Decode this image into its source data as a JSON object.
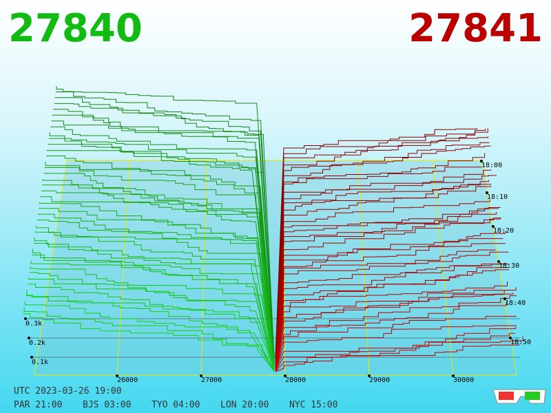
{
  "header": {
    "bid": "27840",
    "ask": "27841"
  },
  "price_axis": {
    "labels": [
      "26000",
      "27000",
      "28000",
      "29000",
      "30000"
    ]
  },
  "depth_axis": {
    "labels": [
      "0.3k",
      "0.2k",
      "0.1k"
    ]
  },
  "time_axis": {
    "labels": [
      "18:00",
      "18:10",
      "18:20",
      "18:30",
      "18:40",
      "18:50"
    ]
  },
  "footer": {
    "utc": "UTC 2023-03-26 19:00",
    "zones": [
      "PAR 21:00",
      "BJS 03:00",
      "TYO 04:00",
      "LON 20:00",
      "NYC 15:00"
    ]
  }
}
